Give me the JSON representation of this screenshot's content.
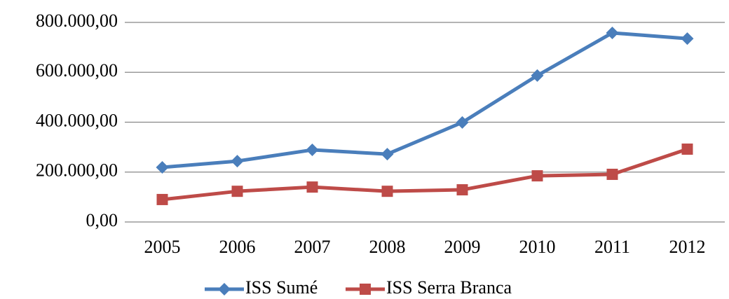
{
  "chart_data": {
    "type": "line",
    "categories": [
      "2005",
      "2006",
      "2007",
      "2008",
      "2009",
      "2010",
      "2011",
      "2012"
    ],
    "series": [
      {
        "name": "ISS Sumé",
        "color": "#4a7ebb",
        "marker": "diamond",
        "values": [
          219000,
          244000,
          289000,
          272000,
          399000,
          587000,
          758000,
          735000
        ]
      },
      {
        "name": "ISS Serra Branca",
        "color": "#be4b48",
        "marker": "square",
        "values": [
          90000,
          123000,
          140000,
          123000,
          129000,
          185000,
          191000,
          292000
        ]
      }
    ],
    "ylim": [
      0,
      800000
    ],
    "yticks": [
      {
        "value": 0,
        "label": "0,00"
      },
      {
        "value": 200000,
        "label": "200.000,00"
      },
      {
        "value": 400000,
        "label": "400.000,00"
      },
      {
        "value": 600000,
        "label": "600.000,00"
      },
      {
        "value": 800000,
        "label": "800.000,00"
      }
    ],
    "grid": true,
    "legend": "bottom"
  }
}
